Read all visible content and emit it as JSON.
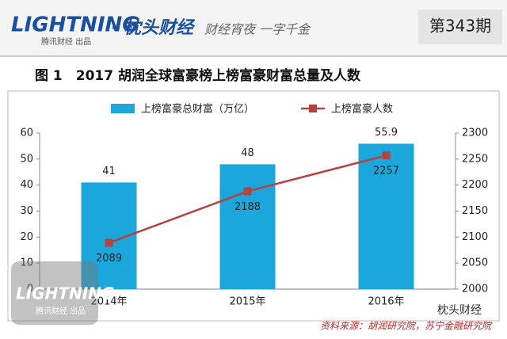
{
  "header": {
    "logo": "LIGHTNING",
    "logo_sub": "腾讯财经 出品",
    "brand": "· 枕头财经",
    "slogan": "财经宵夜 一字千金",
    "issue": "第343期"
  },
  "watermark": {
    "logo": "LIGHTNING",
    "logo_sub": "腾讯财经 出品",
    "account": "枕头财经"
  },
  "chart_data": {
    "type": "bar_line",
    "title": "图 1　2017 胡润全球富豪榜上榜富豪财富总量及人数",
    "categories": [
      "2014年",
      "2015年",
      "2016年"
    ],
    "series": [
      {
        "name": "上榜富豪总财富（万亿）",
        "type": "bar",
        "color": "#1ba7dc",
        "values": [
          41,
          48,
          55.9
        ]
      },
      {
        "name": "上榜富豪人数",
        "type": "line",
        "axis": "y2",
        "color": "#b4423f",
        "values": [
          2089,
          2188,
          2257
        ]
      }
    ],
    "ylim": [
      0,
      60
    ],
    "yticks": [
      0,
      10,
      20,
      30,
      40,
      50,
      60
    ],
    "y2lim": [
      2000,
      2300
    ],
    "y2ticks": [
      2000,
      2050,
      2100,
      2150,
      2200,
      2250,
      2300
    ],
    "legend": "top",
    "source": "资料来源：胡润研究院，苏宁金融研究院"
  }
}
